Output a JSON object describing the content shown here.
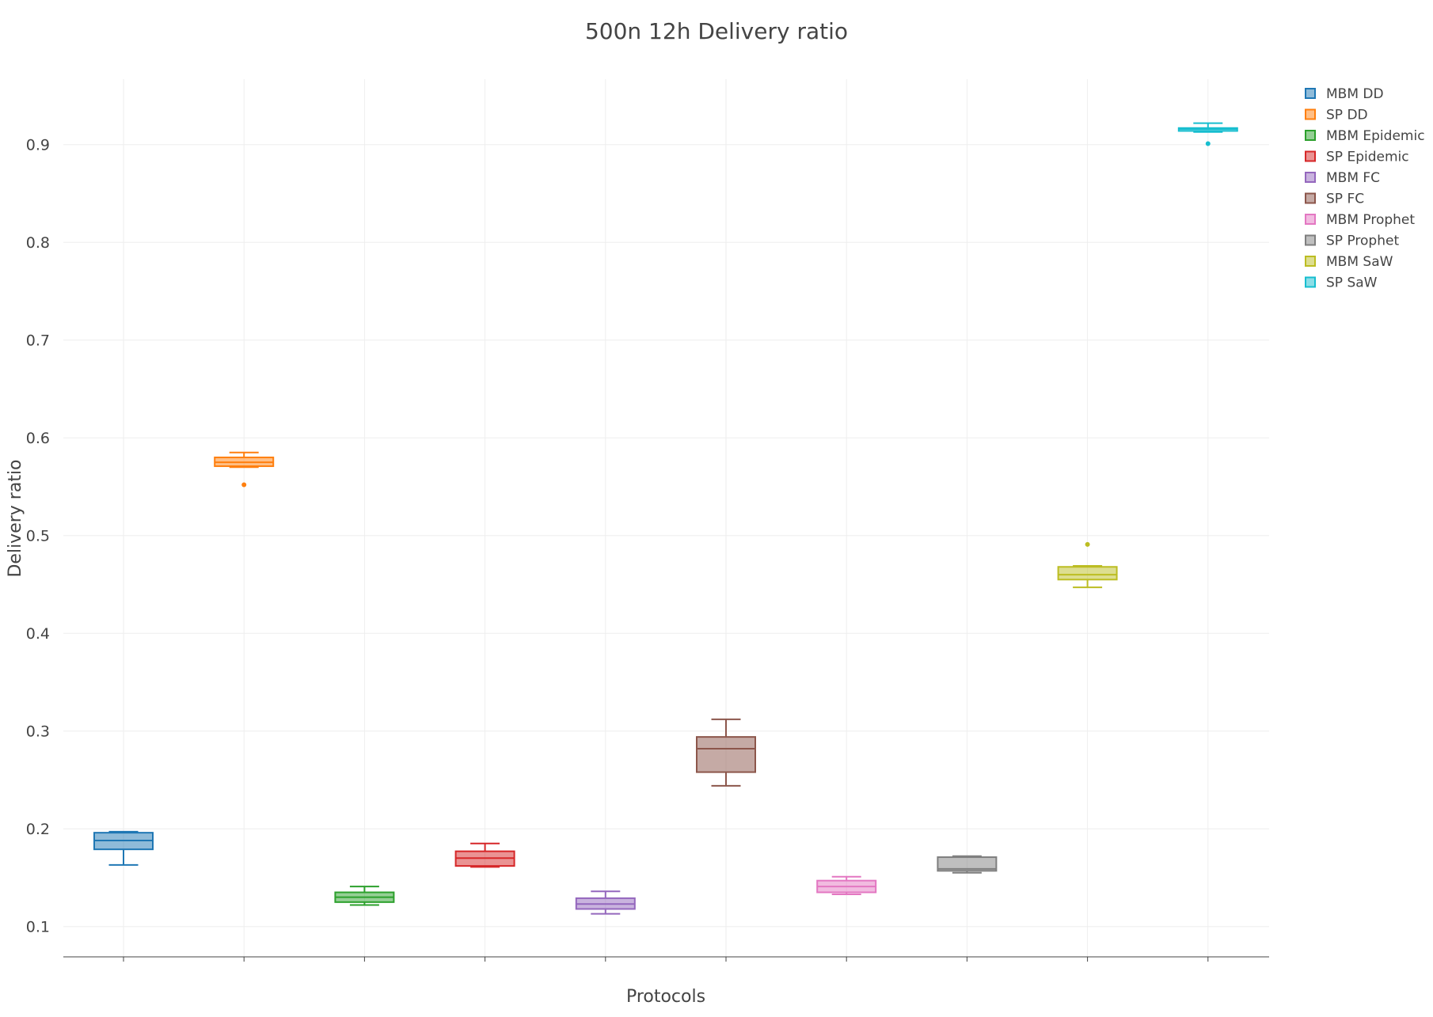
{
  "chart_data": {
    "type": "box",
    "title": "500n 12h Delivery ratio",
    "xlabel": "Protocols",
    "ylabel": "Delivery ratio",
    "ylim": [
      0.069,
      0.967
    ],
    "yticks": [
      0.1,
      0.2,
      0.3,
      0.4,
      0.5,
      0.6,
      0.7,
      0.8,
      0.9
    ],
    "grid": true,
    "legend_position": "top-right",
    "series": [
      {
        "name": "MBM DD",
        "color": "#1f77b4",
        "min": 0.163,
        "q1": 0.179,
        "median": 0.188,
        "q3": 0.196,
        "max": 0.197,
        "outliers": []
      },
      {
        "name": "SP DD",
        "color": "#ff7f0e",
        "min": 0.57,
        "q1": 0.571,
        "median": 0.575,
        "q3": 0.58,
        "max": 0.585,
        "outliers": [
          0.552
        ]
      },
      {
        "name": "MBM Epidemic",
        "color": "#2ca02c",
        "min": 0.122,
        "q1": 0.125,
        "median": 0.13,
        "q3": 0.135,
        "max": 0.141,
        "outliers": []
      },
      {
        "name": "SP Epidemic",
        "color": "#d62728",
        "min": 0.161,
        "q1": 0.162,
        "median": 0.17,
        "q3": 0.177,
        "max": 0.185,
        "outliers": []
      },
      {
        "name": "MBM FC",
        "color": "#9467bd",
        "min": 0.113,
        "q1": 0.118,
        "median": 0.123,
        "q3": 0.129,
        "max": 0.136,
        "outliers": []
      },
      {
        "name": "SP FC",
        "color": "#8c564b",
        "min": 0.244,
        "q1": 0.258,
        "median": 0.282,
        "q3": 0.294,
        "max": 0.312,
        "outliers": []
      },
      {
        "name": "MBM Prophet",
        "color": "#e377c2",
        "min": 0.133,
        "q1": 0.135,
        "median": 0.141,
        "q3": 0.147,
        "max": 0.151,
        "outliers": []
      },
      {
        "name": "SP Prophet",
        "color": "#7f7f7f",
        "min": 0.155,
        "q1": 0.157,
        "median": 0.159,
        "q3": 0.171,
        "max": 0.172,
        "outliers": []
      },
      {
        "name": "MBM SaW",
        "color": "#bcbd22",
        "min": 0.447,
        "q1": 0.455,
        "median": 0.46,
        "q3": 0.468,
        "max": 0.469,
        "outliers": [
          0.491
        ]
      },
      {
        "name": "SP SaW",
        "color": "#17becf",
        "min": 0.913,
        "q1": 0.914,
        "median": 0.916,
        "q3": 0.917,
        "max": 0.922,
        "outliers": [
          0.901
        ]
      }
    ]
  }
}
